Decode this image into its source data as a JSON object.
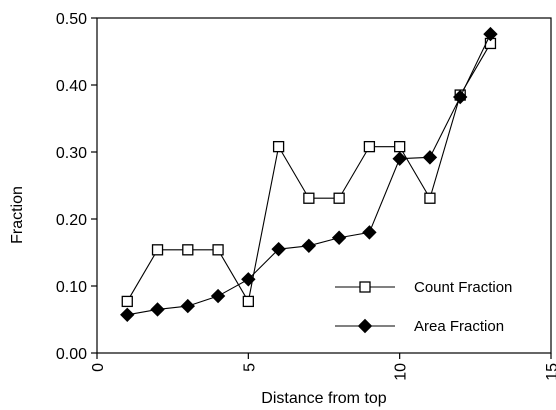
{
  "chart_data": {
    "type": "line",
    "xlabel": "Distance from top",
    "ylabel": "Fraction",
    "xlim": [
      0,
      15
    ],
    "ylim": [
      0,
      0.5
    ],
    "x_ticks": [
      0,
      5,
      10,
      15
    ],
    "y_ticks": [
      "0.00",
      "0.10",
      "0.20",
      "0.30",
      "0.40",
      "0.50"
    ],
    "grid": false,
    "legend_position": "bottom-right",
    "series": [
      {
        "name": "Count Fraction",
        "marker": "open-square",
        "color": "#000000",
        "x": [
          1,
          2,
          3,
          4,
          5,
          6,
          7,
          8,
          9,
          10,
          11,
          12,
          13
        ],
        "y": [
          0.077,
          0.154,
          0.154,
          0.154,
          0.077,
          0.308,
          0.231,
          0.231,
          0.308,
          0.308,
          0.231,
          0.385,
          0.462
        ]
      },
      {
        "name": "Area Fraction",
        "marker": "filled-diamond",
        "color": "#000000",
        "x": [
          1,
          2,
          3,
          4,
          5,
          6,
          7,
          8,
          9,
          10,
          11,
          12,
          13
        ],
        "y": [
          0.057,
          0.065,
          0.07,
          0.085,
          0.11,
          0.155,
          0.16,
          0.172,
          0.18,
          0.29,
          0.292,
          0.382,
          0.476
        ]
      }
    ]
  }
}
